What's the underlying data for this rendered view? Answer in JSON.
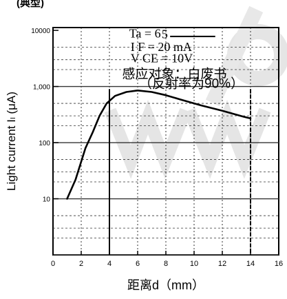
{
  "page": {
    "top_fragment": "(典型)"
  },
  "chart_data": {
    "type": "line",
    "title": "",
    "xlabel": "距离d（mm）",
    "ylabel": "Light current  Iₗ (μA)",
    "x_ticks": [
      "0",
      "2",
      "4",
      "6",
      "8",
      "10",
      "12",
      "14",
      "16"
    ],
    "y_ticks": [
      "10000",
      "1,000",
      "100",
      "10"
    ],
    "xlim": [
      0,
      16
    ],
    "ylim_log10": [
      0,
      4.05
    ],
    "yscale": "log",
    "annotations": [
      {
        "text": "Ta = 6",
        "x": 5.4,
        "y": 7500
      },
      {
        "text": "5",
        "x": 7.7,
        "y": 7200
      },
      {
        "text": "I F = 20 mA",
        "x": 5.5,
        "y": 4300
      },
      {
        "text": "V CE = 10V",
        "x": 5.5,
        "y": 2700
      },
      {
        "text": "感应对象：白废书",
        "x": 4.9,
        "y": 1400
      },
      {
        "text": "（反射率为90%）",
        "x": 6.1,
        "y": 950
      }
    ],
    "series": [
      {
        "points": [
          [
            1.0,
            10
          ],
          [
            1.6,
            22
          ],
          [
            2.3,
            80
          ],
          [
            2.8,
            150
          ],
          [
            3.3,
            300
          ],
          [
            3.8,
            500
          ],
          [
            4.4,
            680
          ],
          [
            5.2,
            800
          ],
          [
            6.0,
            850
          ],
          [
            7.0,
            800
          ],
          [
            8.0,
            700
          ],
          [
            9.0,
            590
          ],
          [
            10.5,
            460
          ],
          [
            12.0,
            370
          ],
          [
            13.5,
            290
          ],
          [
            14.0,
            270
          ]
        ]
      }
    ],
    "grid": true,
    "colors": {
      "curve": "#000000",
      "axis": "#000000",
      "grid": "#333333",
      "watermark": "#cfcfcf"
    }
  }
}
